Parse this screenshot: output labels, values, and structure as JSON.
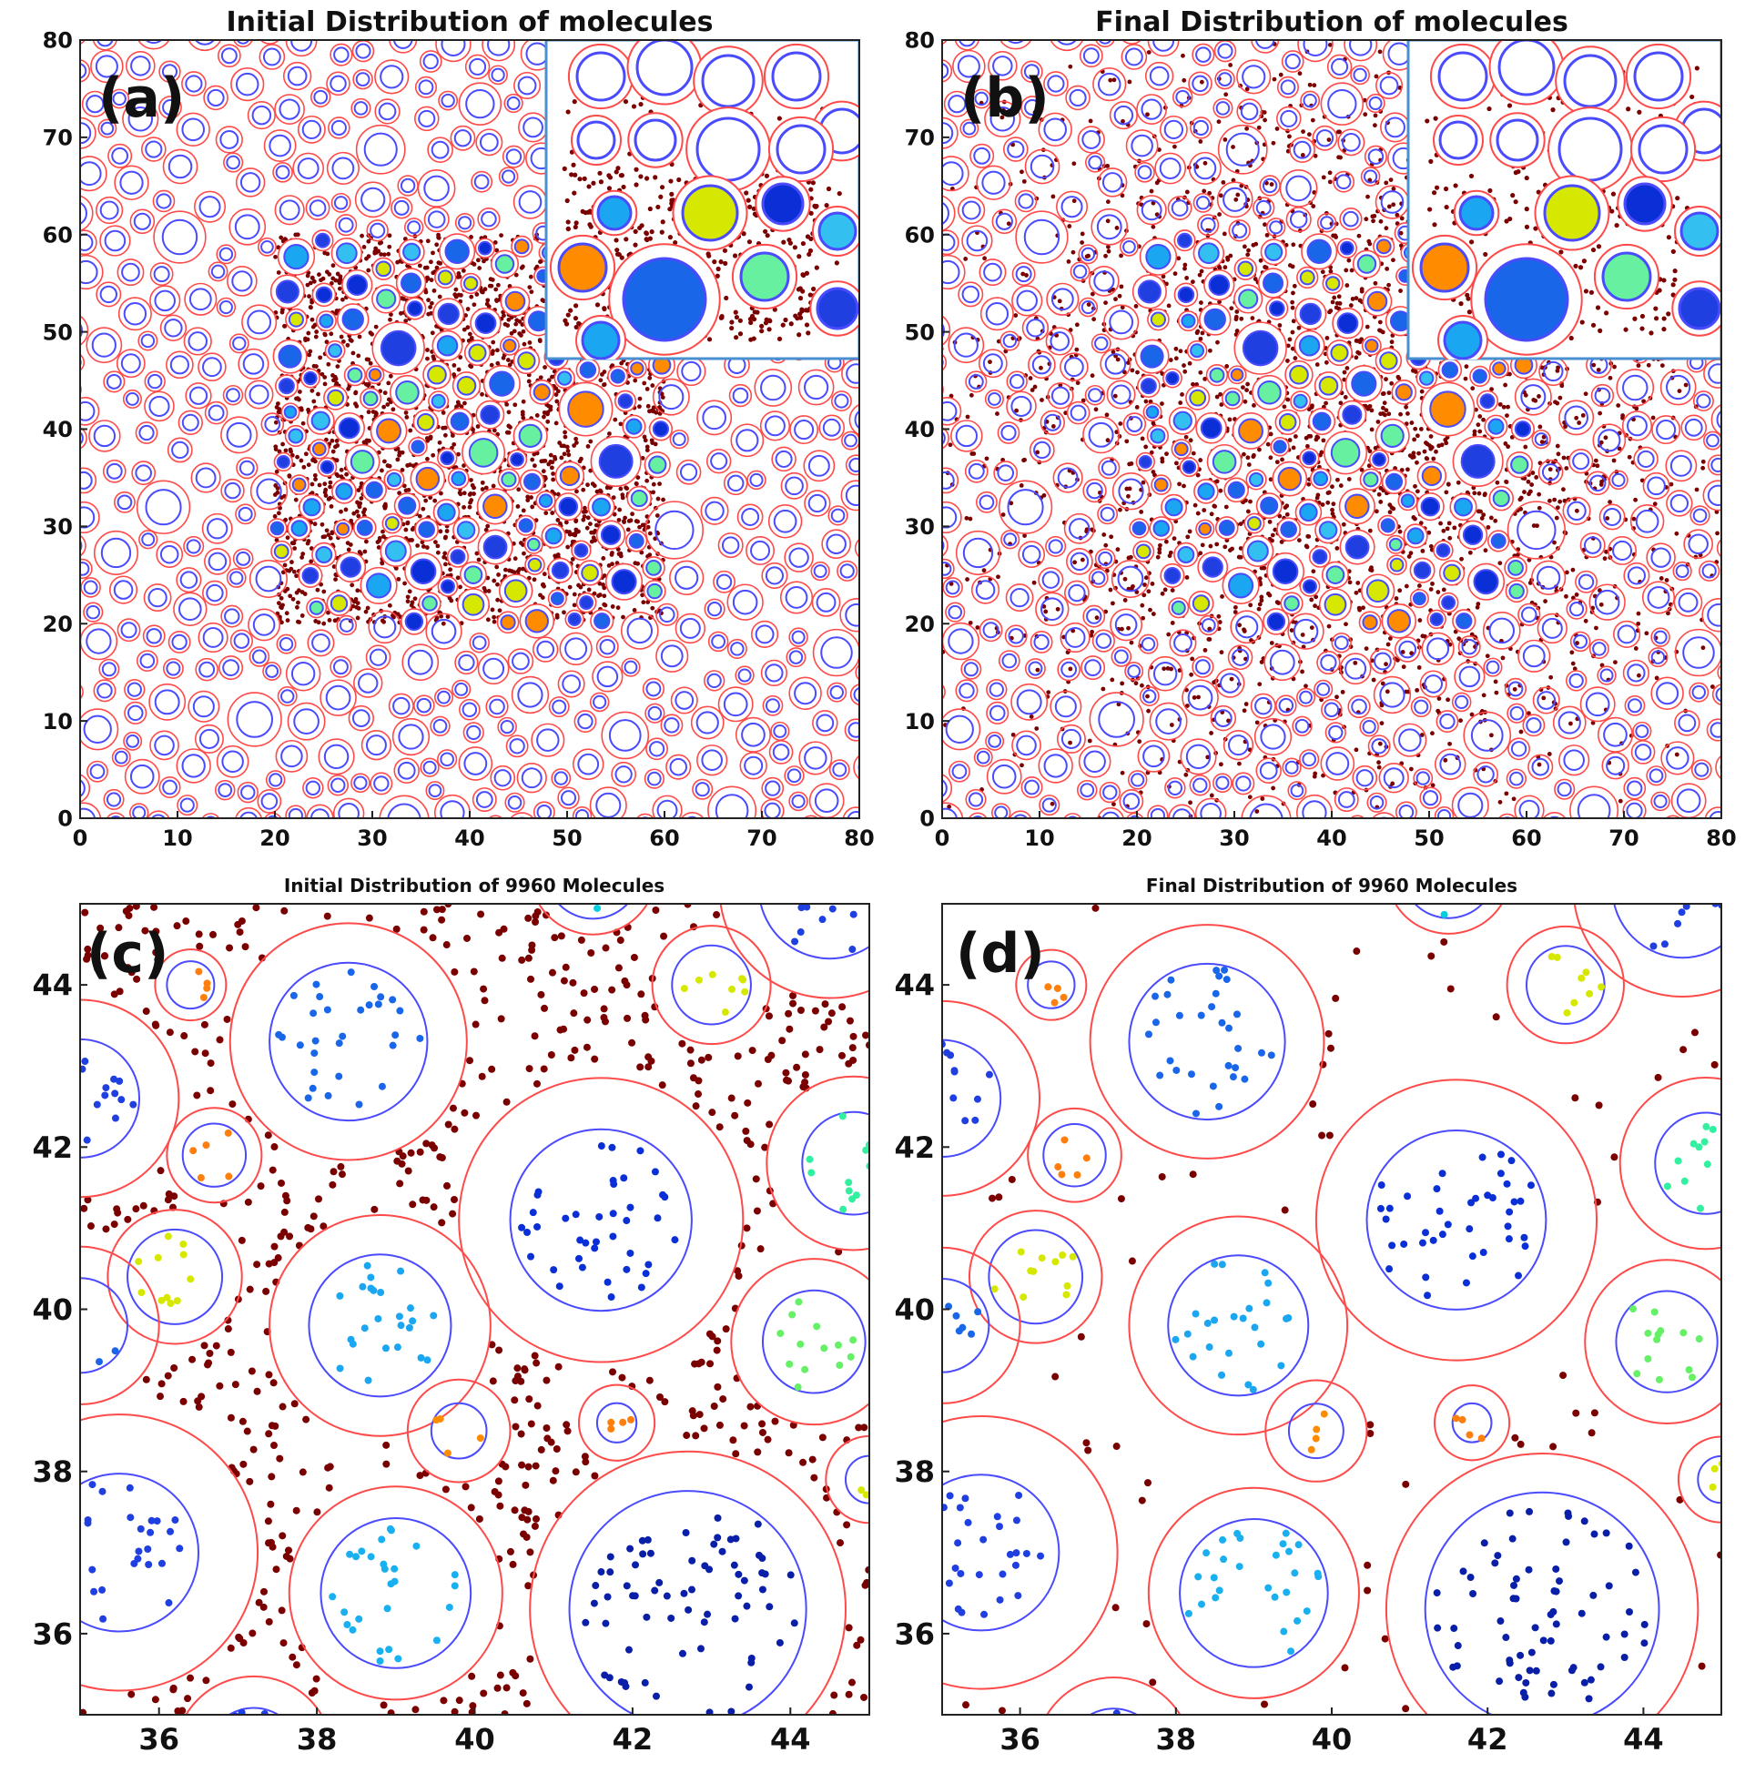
{
  "chart_data": [
    {
      "panel_label": "(a)",
      "type": "scatter",
      "title": "Initial Distribution of molecules",
      "xlim": [
        0,
        80
      ],
      "ylim": [
        0,
        80
      ],
      "xticks": [
        "0",
        "10",
        "20",
        "30",
        "40",
        "50",
        "60",
        "70",
        "80"
      ],
      "yticks": [
        "0",
        "10",
        "20",
        "30",
        "40",
        "50",
        "60",
        "70",
        "80"
      ],
      "dense_region": {
        "x": [
          20,
          60
        ],
        "y": [
          20,
          60
        ]
      },
      "has_inset": true,
      "molecules_spread": false
    },
    {
      "panel_label": "(b)",
      "type": "scatter",
      "title": "Final Distribution of molecules",
      "xlim": [
        0,
        80
      ],
      "ylim": [
        0,
        80
      ],
      "xticks": [
        "0",
        "10",
        "20",
        "30",
        "40",
        "50",
        "60",
        "70",
        "80"
      ],
      "yticks": [
        "0",
        "10",
        "20",
        "30",
        "40",
        "50",
        "60",
        "70",
        "80"
      ],
      "dense_region": {
        "x": [
          20,
          60
        ],
        "y": [
          20,
          60
        ]
      },
      "has_inset": true,
      "molecules_spread": true
    },
    {
      "panel_label": "(c)",
      "type": "scatter",
      "title": "Initial Distribution of 9960 Molecules",
      "xlim": [
        35,
        45
      ],
      "ylim": [
        35,
        45
      ],
      "xticks": [
        "36",
        "38",
        "40",
        "42",
        "44"
      ],
      "yticks": [
        "36",
        "38",
        "40",
        "42",
        "44"
      ],
      "free_molecules": "dense"
    },
    {
      "panel_label": "(d)",
      "type": "scatter",
      "title": "Final Distribution of 9960 Molecules",
      "xlim": [
        35,
        45
      ],
      "ylim": [
        35,
        45
      ],
      "xticks": [
        "36",
        "38",
        "40",
        "42",
        "44"
      ],
      "yticks": [
        "36",
        "38",
        "40",
        "42",
        "44"
      ],
      "free_molecules": "sparse"
    }
  ],
  "zoom_particles": [
    {
      "x": 35.0,
      "y": 42.6,
      "r_inner": 0.75,
      "r_outer": 1.25,
      "color": "#1f3fe0"
    },
    {
      "x": 36.4,
      "y": 44.0,
      "r_inner": 0.3,
      "r_outer": 0.45,
      "color": "#ff7f0e"
    },
    {
      "x": 38.4,
      "y": 43.3,
      "r_inner": 1.0,
      "r_outer": 1.5,
      "color": "#1a66e8"
    },
    {
      "x": 41.5,
      "y": 45.4,
      "r_inner": 0.6,
      "r_outer": 0.8,
      "color": "#00cfe0"
    },
    {
      "x": 43.0,
      "y": 44.0,
      "r_inner": 0.5,
      "r_outer": 0.75,
      "color": "#d7e800"
    },
    {
      "x": 44.5,
      "y": 45.2,
      "r_inner": 0.9,
      "r_outer": 1.4,
      "color": "#1f3fe0"
    },
    {
      "x": 36.7,
      "y": 41.9,
      "r_inner": 0.4,
      "r_outer": 0.6,
      "color": "#ff7f0e"
    },
    {
      "x": 41.6,
      "y": 41.1,
      "r_inner": 1.15,
      "r_outer": 1.8,
      "color": "#0b2fd6"
    },
    {
      "x": 44.8,
      "y": 41.8,
      "r_inner": 0.65,
      "r_outer": 1.1,
      "color": "#33f0a0"
    },
    {
      "x": 36.2,
      "y": 40.4,
      "r_inner": 0.6,
      "r_outer": 0.85,
      "color": "#d7e800"
    },
    {
      "x": 35.0,
      "y": 39.8,
      "r_inner": 0.6,
      "r_outer": 1.0,
      "color": "#1a66e8"
    },
    {
      "x": 38.8,
      "y": 39.8,
      "r_inner": 0.9,
      "r_outer": 1.4,
      "color": "#1aa6f0"
    },
    {
      "x": 44.3,
      "y": 39.6,
      "r_inner": 0.65,
      "r_outer": 1.05,
      "color": "#66f066"
    },
    {
      "x": 39.8,
      "y": 38.5,
      "r_inner": 0.35,
      "r_outer": 0.65,
      "color": "#ff8c00"
    },
    {
      "x": 41.8,
      "y": 38.6,
      "r_inner": 0.25,
      "r_outer": 0.48,
      "color": "#ff7f0e"
    },
    {
      "x": 45.0,
      "y": 37.9,
      "r_inner": 0.3,
      "r_outer": 0.55,
      "color": "#d7e800"
    },
    {
      "x": 35.5,
      "y": 37.0,
      "r_inner": 1.0,
      "r_outer": 1.75,
      "color": "#1f3fe0"
    },
    {
      "x": 39.0,
      "y": 36.5,
      "r_inner": 0.95,
      "r_outer": 1.35,
      "color": "#1ab0f0"
    },
    {
      "x": 42.7,
      "y": 36.3,
      "r_inner": 1.5,
      "r_outer": 2.0,
      "color": "#0a1fa8"
    },
    {
      "x": 37.2,
      "y": 34.5,
      "r_inner": 0.6,
      "r_outer": 1.0,
      "color": "#1f3fe0"
    }
  ],
  "colors": {
    "shell": "#ff4a4a",
    "core": "#4a4aff",
    "free_molecule": "#7a0000",
    "inset_border": "#4a90d0"
  }
}
